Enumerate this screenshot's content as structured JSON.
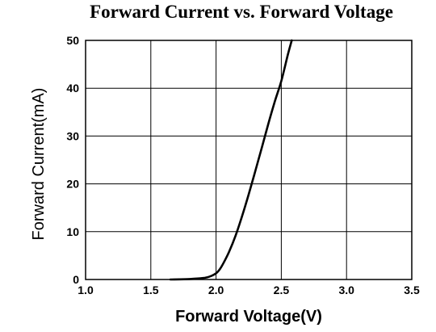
{
  "chart_data": {
    "type": "line",
    "title": "Forward Current vs. Forward Voltage",
    "xlabel": "Forward Voltage(V)",
    "ylabel": "Forward Current(mA)",
    "xlim": [
      1.0,
      3.5
    ],
    "ylim": [
      0,
      50
    ],
    "xticks": [
      "1.0",
      "1.5",
      "2.0",
      "2.5",
      "3.0",
      "3.5"
    ],
    "yticks": [
      "0",
      "10",
      "20",
      "30",
      "40",
      "50"
    ],
    "grid": true,
    "legend": "none",
    "series": [
      {
        "x": [
          1.65,
          1.8,
          1.9,
          1.95,
          2.0,
          2.03,
          2.06,
          2.1,
          2.15,
          2.2,
          2.25,
          2.3,
          2.35,
          2.4,
          2.45,
          2.5,
          2.55,
          2.58
        ],
        "y": [
          0.0,
          0.1,
          0.3,
          0.6,
          1.3,
          2.2,
          3.6,
          5.8,
          9.2,
          13.3,
          17.8,
          22.6,
          27.5,
          32.5,
          37.2,
          41.5,
          47.0,
          50.0
        ],
        "color": "#000000"
      }
    ]
  }
}
